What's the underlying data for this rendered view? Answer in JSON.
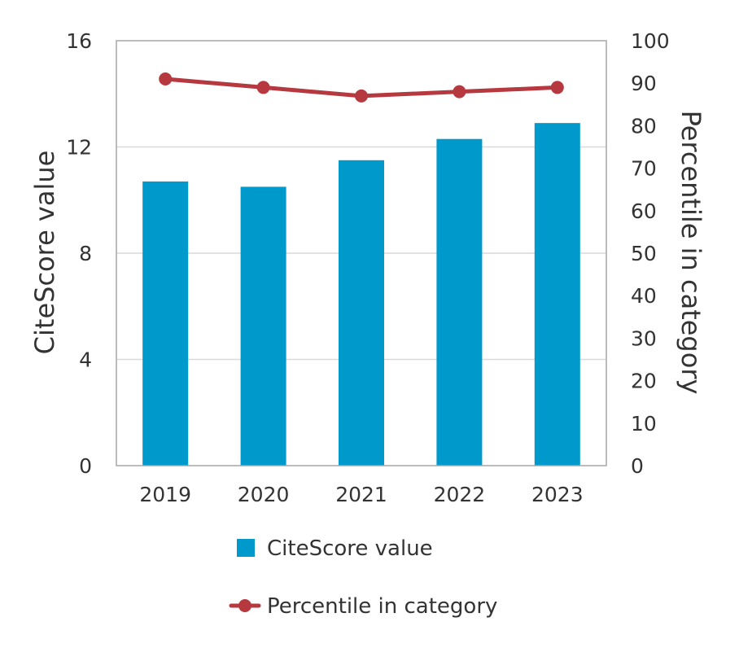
{
  "chart_data": {
    "type": "bar",
    "categories": [
      "2019",
      "2020",
      "2021",
      "2022",
      "2023"
    ],
    "series": [
      {
        "name": "CiteScore value",
        "type": "bar",
        "axis": "left",
        "color": "#0099CC",
        "values": [
          10.7,
          10.5,
          11.5,
          12.3,
          12.9
        ]
      },
      {
        "name": "Percentile in category",
        "type": "line",
        "axis": "right",
        "color": "#B5393F",
        "values": [
          91,
          89,
          87,
          88,
          89
        ]
      }
    ],
    "ylabel": "CiteScore value",
    "y2label": "Percentile in category",
    "ylim": [
      0,
      16
    ],
    "yticks": [
      "0",
      "4",
      "8",
      "12",
      "16"
    ],
    "y2lim": [
      0,
      100
    ],
    "y2ticks": [
      "0",
      "10",
      "20",
      "30",
      "40",
      "50",
      "60",
      "70",
      "80",
      "90",
      "100"
    ],
    "grid": true,
    "legend_position": "bottom"
  }
}
